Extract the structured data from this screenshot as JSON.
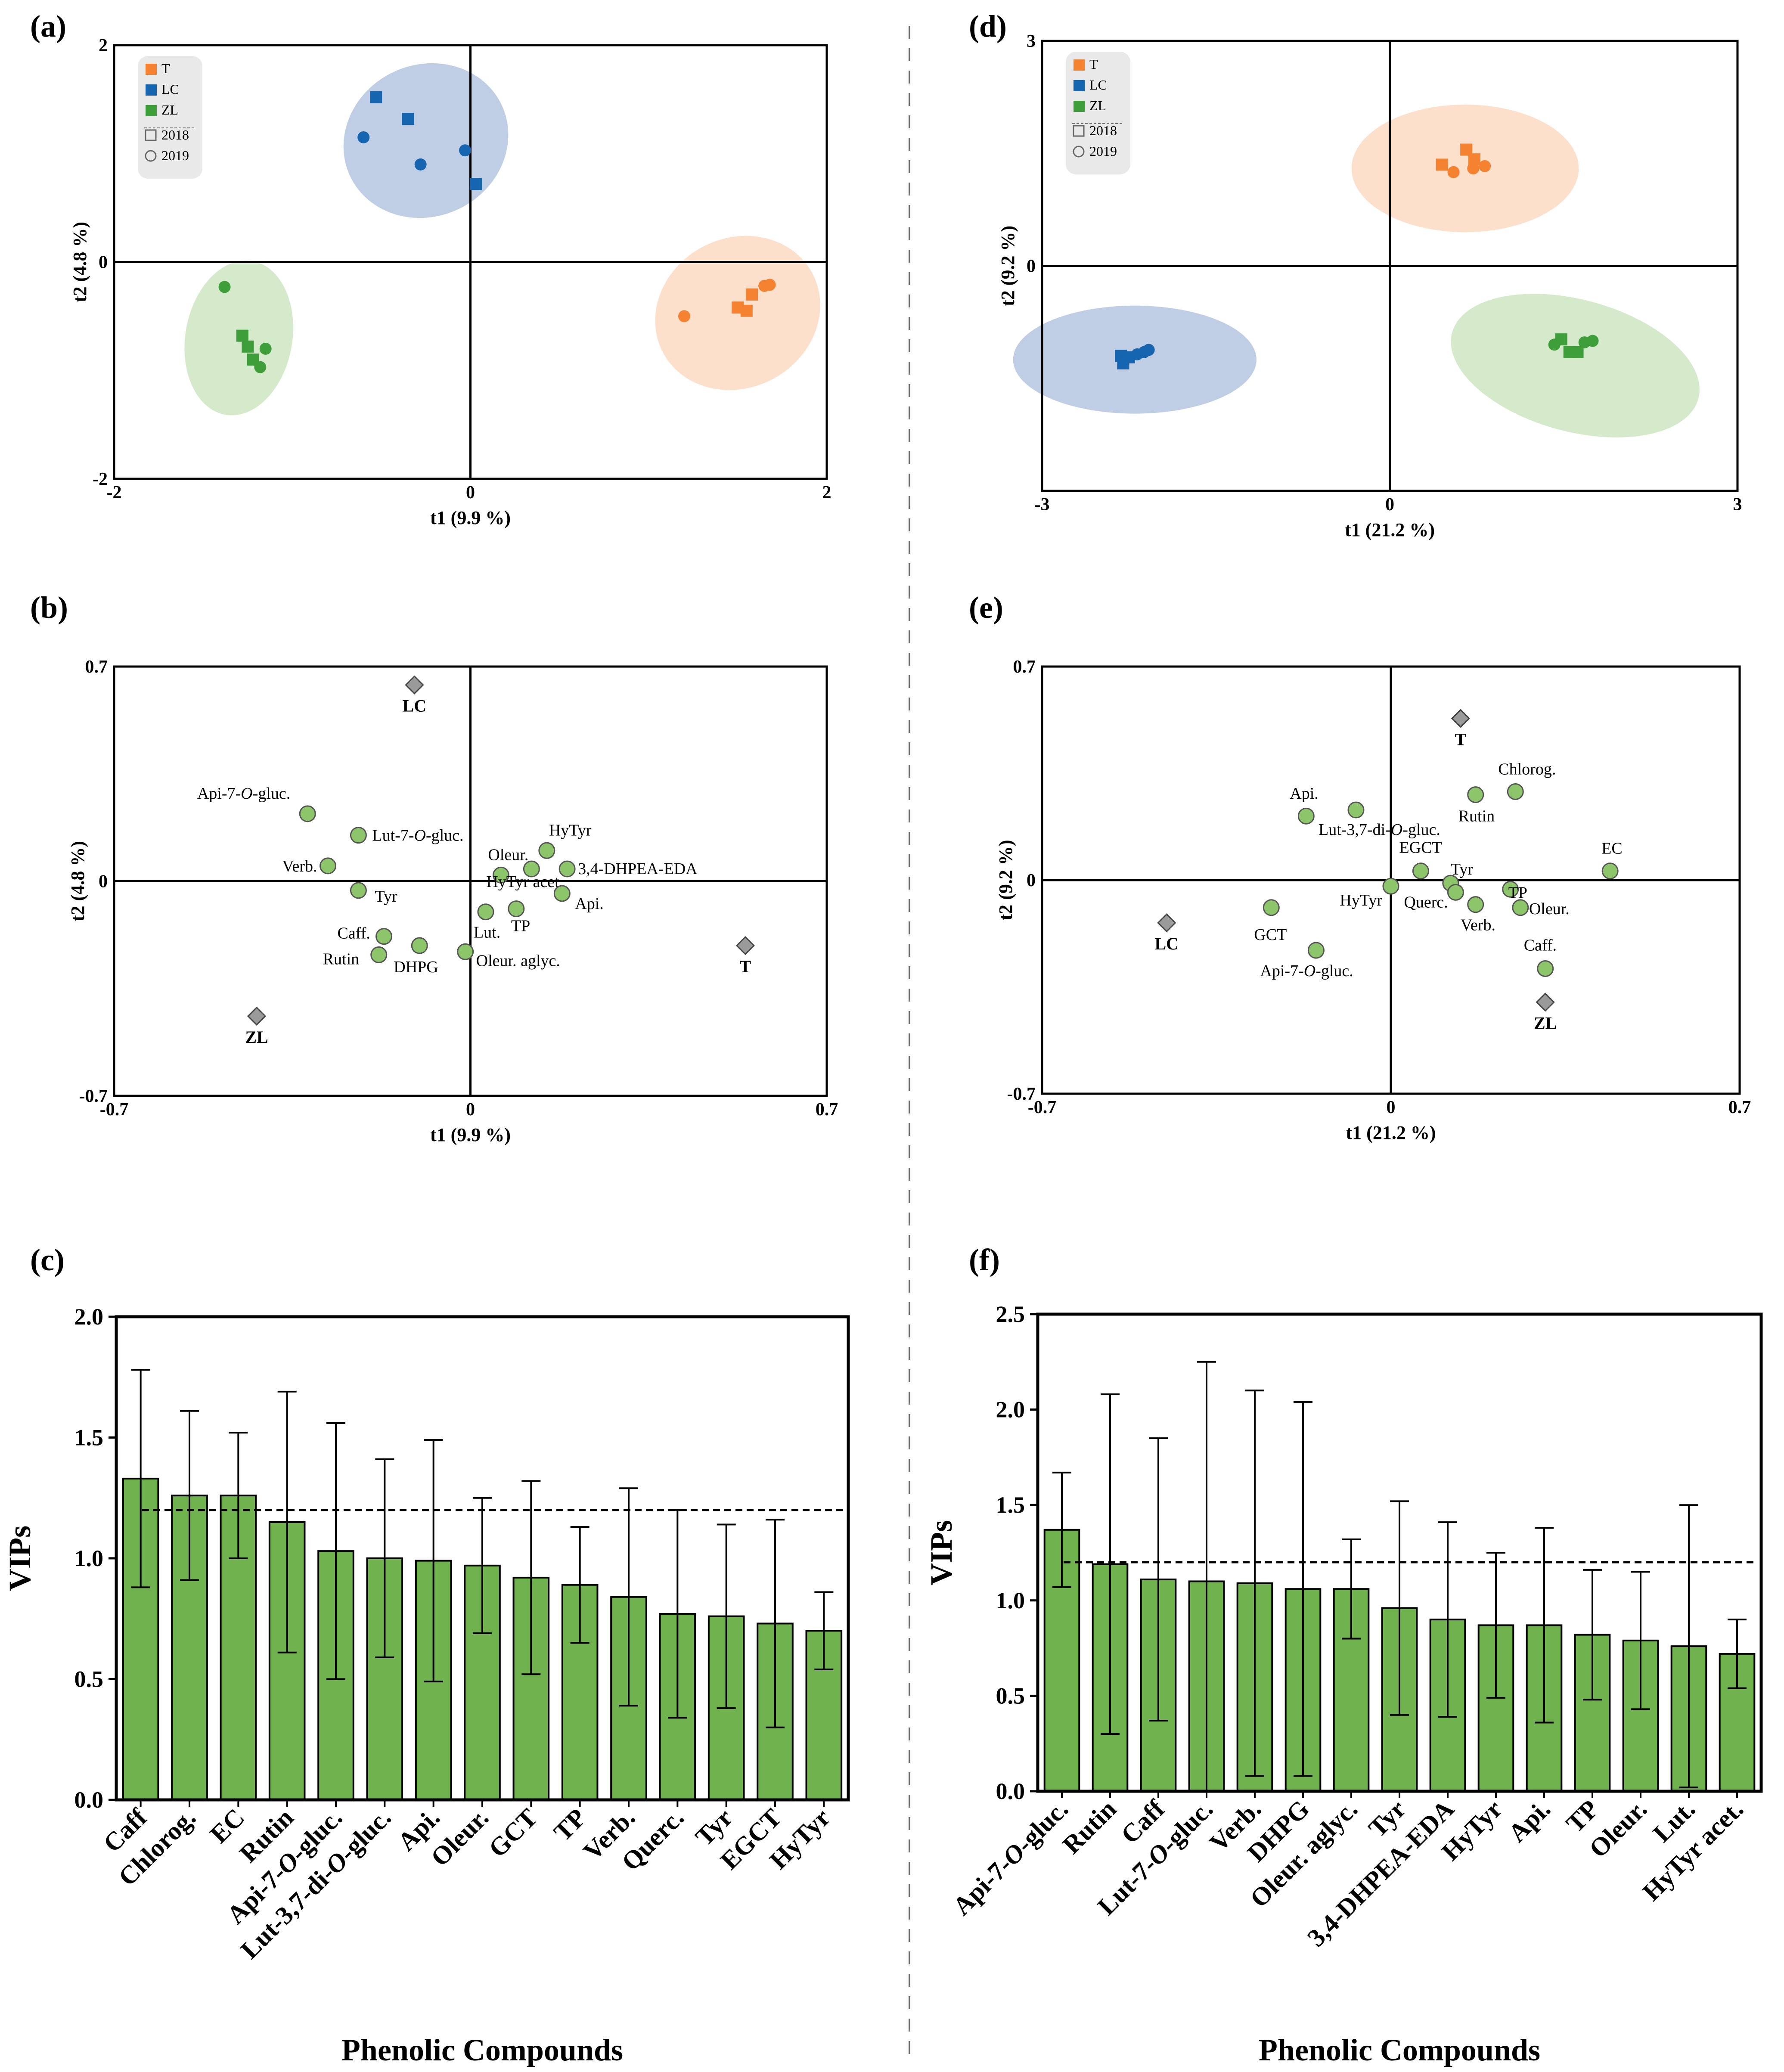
{
  "figure": {
    "background": "#ffffff",
    "colors": {
      "T": "#f58231",
      "LC": "#1565b0",
      "ZL": "#3e9e3a",
      "bar": "#6fb24e",
      "point": "#8dc66a",
      "diamond": "#9a9a9a"
    }
  },
  "legend": {
    "items": [
      {
        "label": "T",
        "shape": "square",
        "color": "#f58231"
      },
      {
        "label": "LC",
        "shape": "square",
        "color": "#1565b0"
      },
      {
        "label": "ZL",
        "shape": "square",
        "color": "#3e9e3a"
      },
      {
        "label": "2018",
        "shape": "square-outline",
        "color": "#666666"
      },
      {
        "label": "2019",
        "shape": "circle-outline",
        "color": "#666666"
      }
    ]
  },
  "chart_data": [
    {
      "id": "a",
      "panel_label": "(a)",
      "type": "scatter",
      "xlabel": "t1 (9.9 %)",
      "ylabel": "t2 (4.8 %)",
      "xlim": [
        -2,
        2
      ],
      "ylim": [
        -2,
        2
      ],
      "x_ticks": [
        "-2",
        "0",
        "2"
      ],
      "y_ticks": [
        "2",
        "0",
        "-2"
      ],
      "ellipses": [
        {
          "group": "LC",
          "cx": -0.25,
          "cy": 1.12,
          "rx": 0.47,
          "ry": 0.7,
          "angle": -25,
          "color": "#8aa4cf"
        },
        {
          "group": "ZL",
          "cx": -1.3,
          "cy": -0.7,
          "rx": 0.3,
          "ry": 0.72,
          "angle": 10,
          "color": "#b3d9a0"
        },
        {
          "group": "T",
          "cx": 1.5,
          "cy": -0.47,
          "rx": 0.42,
          "ry": 0.78,
          "angle": 62,
          "color": "#f9c7a3"
        }
      ],
      "points": [
        {
          "group": "LC",
          "year": "2018",
          "x": -0.53,
          "y": 1.52
        },
        {
          "group": "LC",
          "year": "2018",
          "x": -0.35,
          "y": 1.32
        },
        {
          "group": "LC",
          "year": "2018",
          "x": 0.03,
          "y": 0.72
        },
        {
          "group": "LC",
          "year": "2019",
          "x": -0.6,
          "y": 1.15
        },
        {
          "group": "LC",
          "year": "2019",
          "x": -0.28,
          "y": 0.9
        },
        {
          "group": "LC",
          "year": "2019",
          "x": -0.03,
          "y": 1.03
        },
        {
          "group": "ZL",
          "year": "2018",
          "x": -1.28,
          "y": -0.68
        },
        {
          "group": "ZL",
          "year": "2018",
          "x": -1.25,
          "y": -0.78
        },
        {
          "group": "ZL",
          "year": "2018",
          "x": -1.22,
          "y": -0.9
        },
        {
          "group": "ZL",
          "year": "2019",
          "x": -1.38,
          "y": -0.23
        },
        {
          "group": "ZL",
          "year": "2019",
          "x": -1.18,
          "y": -0.97
        },
        {
          "group": "ZL",
          "year": "2019",
          "x": -1.15,
          "y": -0.8
        },
        {
          "group": "T",
          "year": "2018",
          "x": 1.5,
          "y": -0.42
        },
        {
          "group": "T",
          "year": "2018",
          "x": 1.55,
          "y": -0.45
        },
        {
          "group": "T",
          "year": "2018",
          "x": 1.58,
          "y": -0.3
        },
        {
          "group": "T",
          "year": "2019",
          "x": 1.2,
          "y": -0.5
        },
        {
          "group": "T",
          "year": "2019",
          "x": 1.65,
          "y": -0.22
        },
        {
          "group": "T",
          "year": "2019",
          "x": 1.68,
          "y": -0.21
        }
      ]
    },
    {
      "id": "d",
      "panel_label": "(d)",
      "type": "scatter",
      "xlabel": "t1 (21.2 %)",
      "ylabel": "t2 (9.2 %)",
      "xlim": [
        -3,
        3
      ],
      "ylim": [
        -3,
        3
      ],
      "x_ticks": [
        "-3",
        "0",
        "3"
      ],
      "y_ticks": [
        "3",
        "0"
      ],
      "ellipses": [
        {
          "group": "LC",
          "cx": -2.2,
          "cy": -1.25,
          "rx": 1.05,
          "ry": 0.72,
          "angle": 0,
          "color": "#8aa4cf"
        },
        {
          "group": "T",
          "cx": 0.65,
          "cy": 1.3,
          "rx": 0.98,
          "ry": 0.85,
          "angle": 0,
          "color": "#f9c7a3"
        },
        {
          "group": "ZL",
          "cx": 1.6,
          "cy": -1.33,
          "rx": 1.1,
          "ry": 0.88,
          "angle": 15,
          "color": "#b3d9a0"
        }
      ],
      "points": [
        {
          "group": "LC",
          "year": "2018",
          "x": -2.32,
          "y": -1.2
        },
        {
          "group": "LC",
          "year": "2018",
          "x": -2.25,
          "y": -1.22
        },
        {
          "group": "LC",
          "year": "2018",
          "x": -2.3,
          "y": -1.3
        },
        {
          "group": "LC",
          "year": "2019",
          "x": -2.18,
          "y": -1.18
        },
        {
          "group": "LC",
          "year": "2019",
          "x": -2.12,
          "y": -1.15
        },
        {
          "group": "LC",
          "year": "2019",
          "x": -2.08,
          "y": -1.12
        },
        {
          "group": "T",
          "year": "2018",
          "x": 0.45,
          "y": 1.35
        },
        {
          "group": "T",
          "year": "2018",
          "x": 0.66,
          "y": 1.55
        },
        {
          "group": "T",
          "year": "2018",
          "x": 0.73,
          "y": 1.42
        },
        {
          "group": "T",
          "year": "2019",
          "x": 0.55,
          "y": 1.25
        },
        {
          "group": "T",
          "year": "2019",
          "x": 0.72,
          "y": 1.3
        },
        {
          "group": "T",
          "year": "2019",
          "x": 0.82,
          "y": 1.33
        },
        {
          "group": "ZL",
          "year": "2018",
          "x": 1.48,
          "y": -0.98
        },
        {
          "group": "ZL",
          "year": "2018",
          "x": 1.62,
          "y": -1.15
        },
        {
          "group": "ZL",
          "year": "2018",
          "x": 1.55,
          "y": -1.15
        },
        {
          "group": "ZL",
          "year": "2019",
          "x": 1.42,
          "y": -1.05
        },
        {
          "group": "ZL",
          "year": "2019",
          "x": 1.68,
          "y": -1.02
        },
        {
          "group": "ZL",
          "year": "2019",
          "x": 1.75,
          "y": -1.0
        }
      ]
    },
    {
      "id": "b",
      "panel_label": "(b)",
      "type": "scatter",
      "xlabel": "t1 (9.9 %)",
      "ylabel": "t2 (4.8 %)",
      "xlim": [
        -0.7,
        0.7
      ],
      "ylim": [
        -0.7,
        0.7
      ],
      "x_ticks": [
        "-0.7",
        "0",
        "0.7"
      ],
      "y_ticks": [
        "0.7",
        "0",
        "-0.7"
      ],
      "classes": [
        {
          "label": "LC",
          "x": -0.11,
          "y": 0.64
        },
        {
          "label": "T",
          "x": 0.54,
          "y": -0.21
        },
        {
          "label": "ZL",
          "x": -0.42,
          "y": -0.44
        }
      ],
      "variables": [
        {
          "label": "Api-7-O-gluc.",
          "x": -0.32,
          "y": 0.22
        },
        {
          "label": "Lut-7-O-gluc.",
          "x": -0.22,
          "y": 0.15
        },
        {
          "label": "Verb.",
          "x": -0.28,
          "y": 0.05
        },
        {
          "label": "Tyr",
          "x": -0.22,
          "y": -0.03
        },
        {
          "label": "HyTyr",
          "x": 0.15,
          "y": 0.1
        },
        {
          "label": "Oleur.",
          "x": 0.06,
          "y": 0.02
        },
        {
          "label": "3,4-DHPEA-EDA",
          "x": 0.19,
          "y": 0.04
        },
        {
          "label": "HyTyr acet.",
          "x": 0.12,
          "y": 0.04
        },
        {
          "label": "Api.",
          "x": 0.18,
          "y": -0.04
        },
        {
          "label": "Lut.",
          "x": 0.03,
          "y": -0.1
        },
        {
          "label": "TP",
          "x": 0.09,
          "y": -0.09
        },
        {
          "label": "Caff.",
          "x": -0.17,
          "y": -0.18
        },
        {
          "label": "Rutin",
          "x": -0.18,
          "y": -0.24
        },
        {
          "label": "DHPG",
          "x": -0.1,
          "y": -0.21
        },
        {
          "label": "Oleur. aglyc.",
          "x": -0.01,
          "y": -0.23
        }
      ]
    },
    {
      "id": "e",
      "panel_label": "(e)",
      "type": "scatter",
      "xlabel": "t1 (21.2 %)",
      "ylabel": "t2 (9.2 %)",
      "xlim": [
        -0.7,
        0.7
      ],
      "ylim": [
        -0.7,
        0.7
      ],
      "x_ticks": [
        "-0.7",
        "0",
        "0.7"
      ],
      "y_ticks": [
        "0.7",
        "0",
        "-0.7"
      ],
      "classes": [
        {
          "label": "T",
          "x": 0.14,
          "y": 0.53
        },
        {
          "label": "LC",
          "x": -0.45,
          "y": -0.14
        },
        {
          "label": "ZL",
          "x": 0.31,
          "y": -0.4
        }
      ],
      "variables": [
        {
          "label": "Chlorog.",
          "x": 0.25,
          "y": 0.29
        },
        {
          "label": "Rutin",
          "x": 0.17,
          "y": 0.28
        },
        {
          "label": "Api.",
          "x": -0.17,
          "y": 0.21
        },
        {
          "label": "Lut-3,7-di-O-gluc.",
          "x": -0.07,
          "y": 0.23
        },
        {
          "label": "EGCT",
          "x": 0.06,
          "y": 0.03
        },
        {
          "label": "Tyr",
          "x": 0.12,
          "y": -0.01
        },
        {
          "label": "EC",
          "x": 0.44,
          "y": 0.03
        },
        {
          "label": "HyTyr",
          "x": 0.0,
          "y": -0.02
        },
        {
          "label": "Querc.",
          "x": 0.13,
          "y": -0.04
        },
        {
          "label": "TP",
          "x": 0.24,
          "y": -0.03
        },
        {
          "label": "Oleur.",
          "x": 0.26,
          "y": -0.09
        },
        {
          "label": "Verb.",
          "x": 0.17,
          "y": -0.08
        },
        {
          "label": "GCT",
          "x": -0.24,
          "y": -0.09
        },
        {
          "label": "Api-7-O-gluc.",
          "x": -0.15,
          "y": -0.23
        },
        {
          "label": "Caff.",
          "x": 0.31,
          "y": -0.29
        }
      ]
    },
    {
      "id": "c",
      "panel_label": "(c)",
      "type": "bar",
      "xlabel": "Phenolic Compounds",
      "ylabel": "VIPs",
      "ylim": [
        0,
        2.0
      ],
      "y_ticks": [
        "0.0",
        "0.5",
        "1.0",
        "1.5",
        "2.0"
      ],
      "threshold": 1.2,
      "categories": [
        "Caff",
        "Chlorog.",
        "EC",
        "Rutin",
        "Api-7-O-gluc.",
        "Lut-3,7-di-O-gluc.",
        "Api.",
        "Oleur.",
        "GCT",
        "TP",
        "Verb.",
        "Querc.",
        "Tyr",
        "EGCT",
        "HyTyr"
      ],
      "values": [
        1.33,
        1.26,
        1.26,
        1.15,
        1.03,
        1.0,
        0.99,
        0.97,
        0.92,
        0.89,
        0.84,
        0.77,
        0.76,
        0.73,
        0.7
      ],
      "errors": [
        0.45,
        0.35,
        0.26,
        0.54,
        0.53,
        0.41,
        0.5,
        0.28,
        0.4,
        0.24,
        0.45,
        0.43,
        0.38,
        0.43,
        0.16
      ]
    },
    {
      "id": "f",
      "panel_label": "(f)",
      "type": "bar",
      "xlabel": "Phenolic Compounds",
      "ylabel": "VIPs",
      "ylim": [
        0,
        2.5
      ],
      "y_ticks": [
        "0.0",
        "0.5",
        "1.0",
        "1.5",
        "2.0",
        "2.5"
      ],
      "threshold": 1.2,
      "categories": [
        "Api-7-O-gluc.",
        "Rutin",
        "Caff",
        "Lut-7-O-gluc.",
        "Verb.",
        "DHPG",
        "Oleur. aglyc.",
        "Tyr",
        "3,4-DHPEA-EDA",
        "HyTyr",
        "Api.",
        "TP",
        "Oleur.",
        "Lut.",
        "HyTyr acet."
      ],
      "values": [
        1.37,
        1.19,
        1.11,
        1.1,
        1.09,
        1.06,
        1.06,
        0.96,
        0.9,
        0.87,
        0.87,
        0.82,
        0.79,
        0.76,
        0.72
      ],
      "errors": [
        0.3,
        0.89,
        0.74,
        1.15,
        1.01,
        0.98,
        0.26,
        0.56,
        0.51,
        0.38,
        0.51,
        0.34,
        0.36,
        0.74,
        0.18
      ]
    }
  ]
}
